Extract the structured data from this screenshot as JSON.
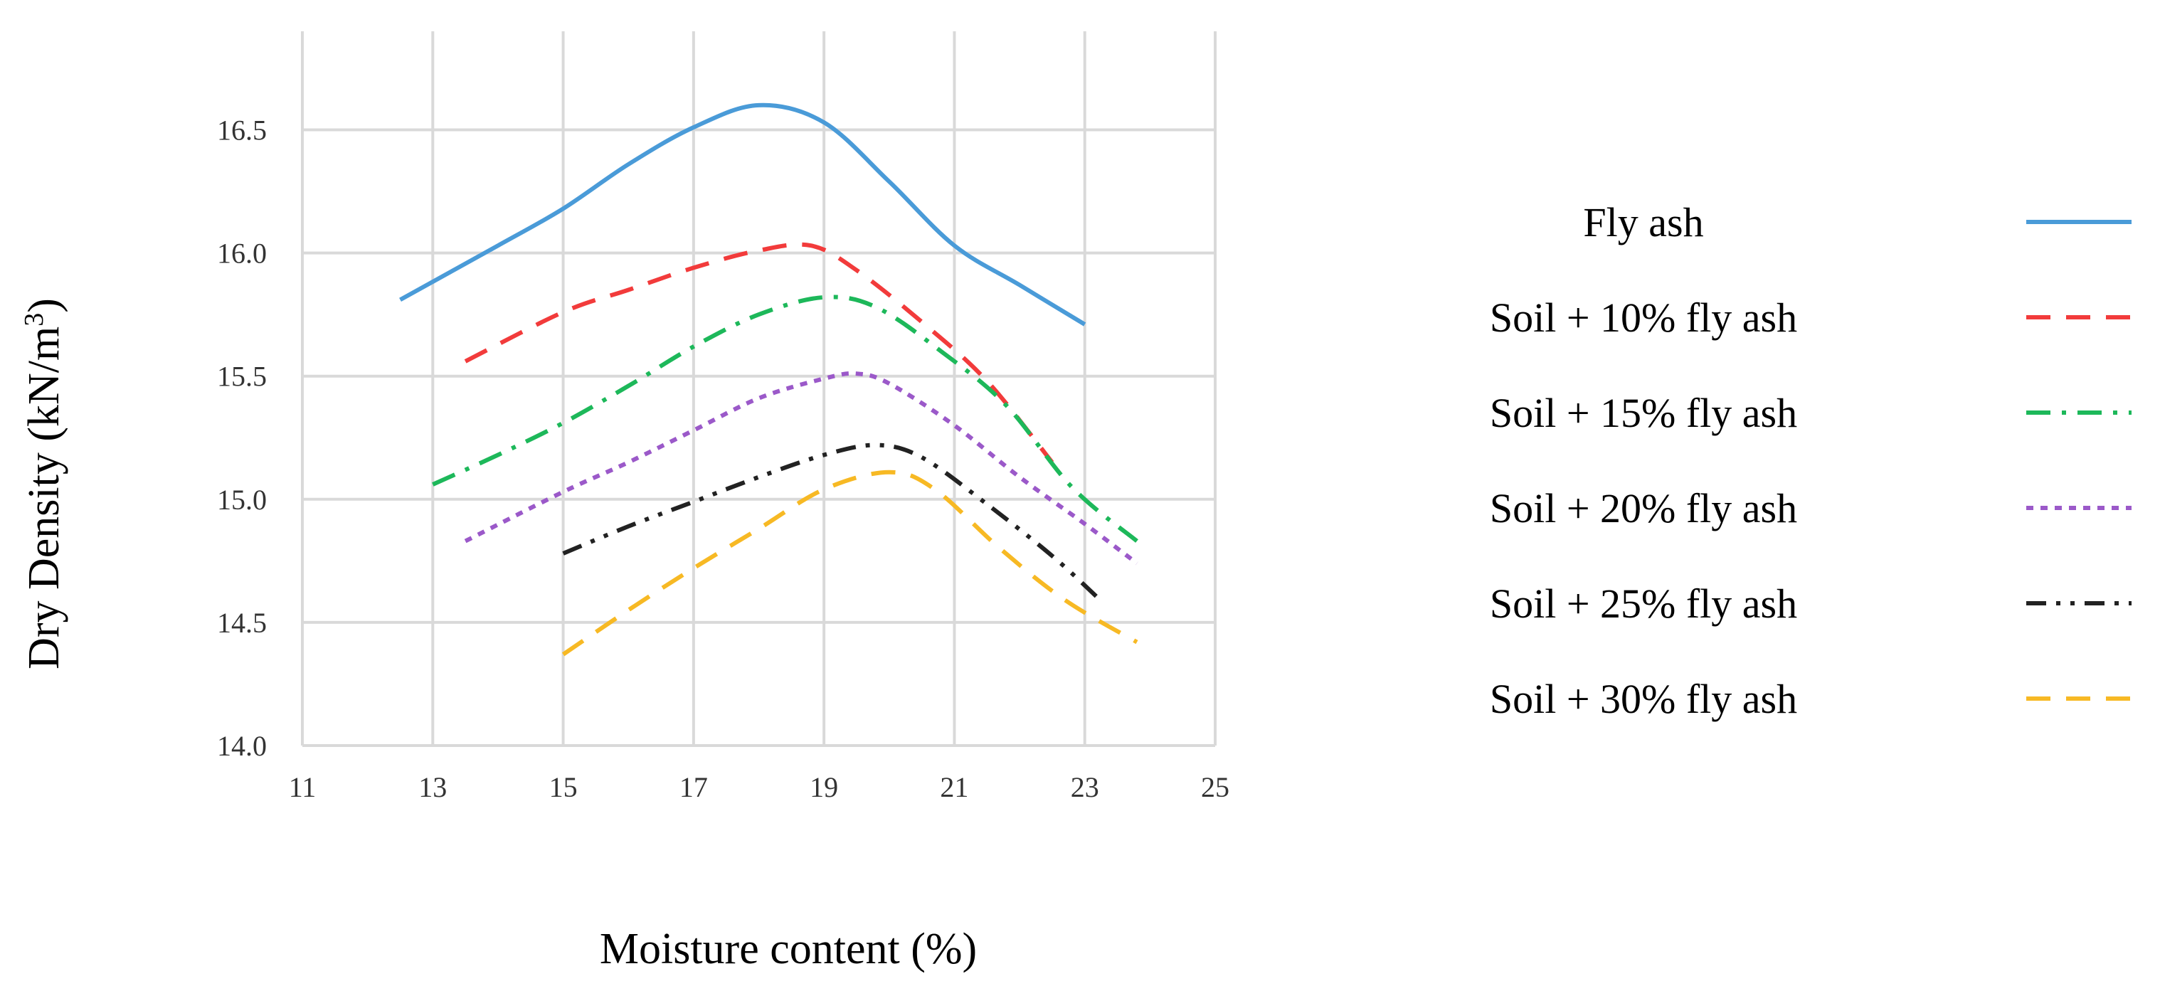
{
  "chart_data": {
    "type": "line",
    "title": "",
    "xlabel": "Moisture content (%)",
    "ylabel": "Dry Density (kN/m³)",
    "ylabel_main": "Dry Density (kN/m",
    "ylabel_sup": "3",
    "ylabel_close": ")",
    "xlim": [
      11,
      25
    ],
    "ylim": [
      14.0,
      16.9
    ],
    "xticks": [
      11,
      13,
      15,
      17,
      19,
      21,
      23,
      25
    ],
    "xtick_labels": [
      "11",
      "13",
      "15",
      "17",
      "19",
      "21",
      "23",
      "25"
    ],
    "yticks": [
      14.0,
      14.5,
      15.0,
      15.5,
      16.0,
      16.5
    ],
    "ytick_labels": [
      "14.0",
      "14.5",
      "15.0",
      "15.5",
      "16.0",
      "16.5"
    ],
    "grid": true,
    "legend_position": "right",
    "series": [
      {
        "name": "Fly ash",
        "color": "#4A9BD8",
        "style": "solid",
        "x": [
          12.5,
          14,
          15,
          16,
          17,
          18,
          19,
          20,
          21,
          22,
          23
        ],
        "y": [
          15.81,
          16.03,
          16.18,
          16.36,
          16.51,
          16.6,
          16.53,
          16.29,
          16.03,
          15.87,
          15.71
        ]
      },
      {
        "name": "Soil + 10% fly ash",
        "color": "#F23B3B",
        "style": "dash",
        "x": [
          13.5,
          15,
          16,
          17,
          18,
          18.8,
          19.5,
          20.5,
          21.5,
          22.5
        ],
        "y": [
          15.56,
          15.76,
          15.85,
          15.94,
          16.01,
          16.03,
          15.93,
          15.72,
          15.48,
          15.15
        ]
      },
      {
        "name": "Soil + 15% fly ash",
        "color": "#1DB85A",
        "style": "dashdot",
        "x": [
          13,
          14,
          15,
          16,
          17,
          18,
          19,
          19.8,
          20.8,
          21.8,
          22.8,
          23.8
        ],
        "y": [
          15.06,
          15.18,
          15.31,
          15.46,
          15.62,
          15.75,
          15.82,
          15.78,
          15.6,
          15.38,
          15.05,
          14.83
        ]
      },
      {
        "name": "Soil + 20% fly ash",
        "color": "#9B59C9",
        "style": "dot",
        "x": [
          13.5,
          15,
          16,
          17,
          18,
          19,
          19.5,
          20,
          21,
          22,
          23,
          23.8
        ],
        "y": [
          14.83,
          15.03,
          15.15,
          15.28,
          15.41,
          15.49,
          15.51,
          15.47,
          15.3,
          15.09,
          14.9,
          14.74
        ]
      },
      {
        "name": "Soil + 25% fly ash",
        "color": "#222222",
        "style": "dashdotdot",
        "x": [
          15,
          16,
          17,
          18,
          19,
          19.8,
          20.5,
          21.5,
          22.5,
          23.2
        ],
        "y": [
          14.78,
          14.89,
          14.99,
          15.09,
          15.18,
          15.22,
          15.17,
          14.98,
          14.77,
          14.6
        ]
      },
      {
        "name": "Soil + 30% fly ash",
        "color": "#F7B924",
        "style": "dash",
        "x": [
          15,
          16,
          17,
          18,
          19,
          20,
          20.7,
          21.7,
          22.7,
          23.8
        ],
        "y": [
          14.37,
          14.55,
          14.72,
          14.88,
          15.04,
          15.11,
          15.04,
          14.8,
          14.59,
          14.42
        ]
      }
    ]
  }
}
